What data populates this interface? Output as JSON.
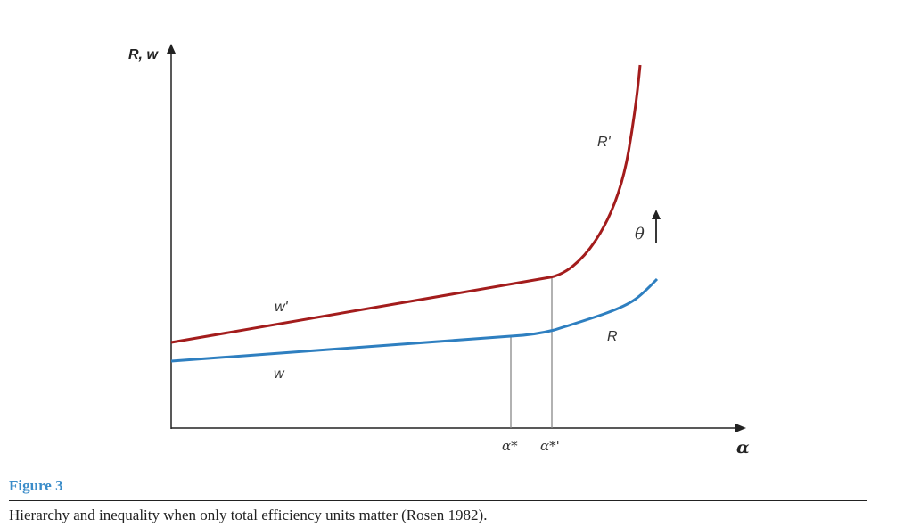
{
  "figure": {
    "y_axis_label": "R, w",
    "x_axis_label": "α",
    "curves": {
      "w_prime": "w'",
      "w": "w",
      "R_prime": "R'",
      "R": "R"
    },
    "ticks": {
      "alpha_star": "α*",
      "alpha_star_prime": "α*'"
    },
    "shift": {
      "symbol": "θ"
    },
    "colors": {
      "upper_curve": "#a31c1c",
      "lower_curve": "#2e7fc0",
      "axes": "#222222",
      "guides": "#888888"
    }
  },
  "caption": {
    "title": "Figure 3",
    "text": "Hierarchy and inequality when only total efficiency units matter (Rosen 1982)."
  }
}
